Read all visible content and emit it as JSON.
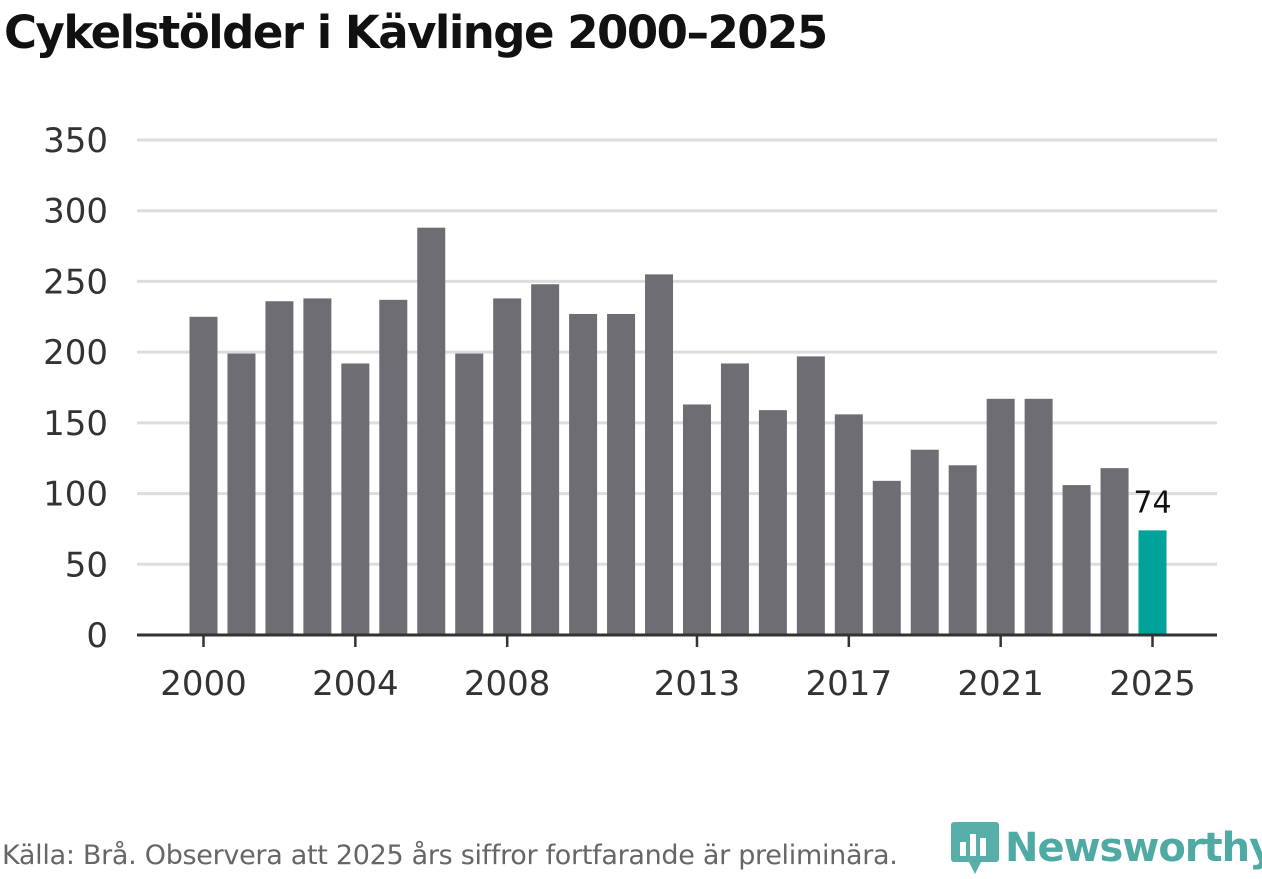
{
  "title": "Cykelstölder i Kävlinge 2000–2025",
  "source": "Källa: Brå. Observera att 2025 års siffror fortfarande är preliminära.",
  "brand": {
    "name": "Newsworthy",
    "icon": "bar-chart-icon",
    "color": "#46a6a0"
  },
  "colors": {
    "bar": "#6e6d73",
    "highlight": "#00a39a",
    "grid": "#dddddd",
    "axis": "#333333",
    "text": "#333333"
  },
  "chart_data": {
    "type": "bar",
    "title": "Cykelstölder i Kävlinge 2000–2025",
    "xlabel": "",
    "ylabel": "",
    "ylim": [
      0,
      350
    ],
    "yticks": [
      0,
      50,
      100,
      150,
      200,
      250,
      300,
      350
    ],
    "xticks": [
      "2000",
      "2004",
      "2008",
      "2013",
      "2017",
      "2021",
      "2025"
    ],
    "grid": true,
    "categories": [
      "2000",
      "2001",
      "2002",
      "2003",
      "2004",
      "2005",
      "2006",
      "2007",
      "2008",
      "2009",
      "2010",
      "2011",
      "2012",
      "2013",
      "2014",
      "2015",
      "2016",
      "2017",
      "2018",
      "2019",
      "2020",
      "2021",
      "2022",
      "2023",
      "2024",
      "2025"
    ],
    "values": [
      225,
      199,
      236,
      238,
      192,
      237,
      288,
      199,
      238,
      248,
      227,
      227,
      255,
      163,
      192,
      159,
      197,
      156,
      109,
      131,
      120,
      167,
      167,
      106,
      118,
      74
    ],
    "highlight_index": 25,
    "data_labels": [
      {
        "category": "2025",
        "label": "74"
      }
    ]
  }
}
